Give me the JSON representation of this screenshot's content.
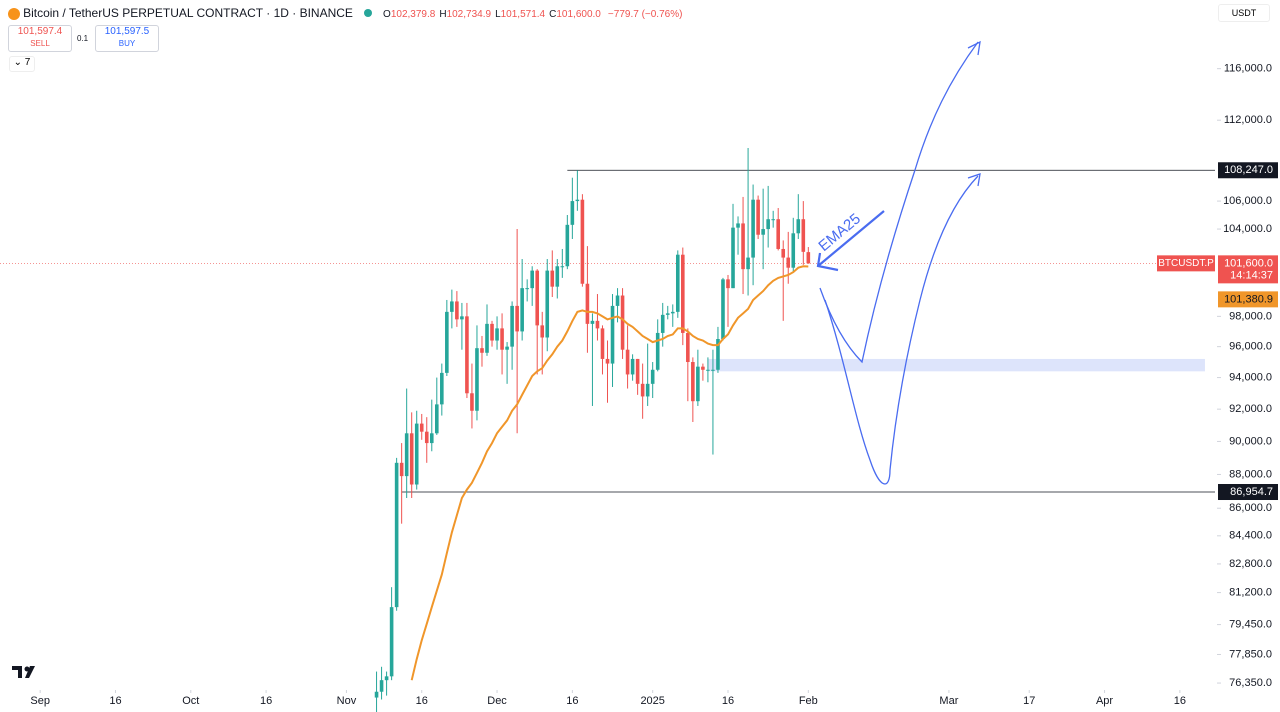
{
  "header": {
    "title": "Bitcoin / TetherUS PERPETUAL CONTRACT · 1D · BINANCE",
    "ohlc": [
      {
        "k": "O",
        "v": "102,379.8"
      },
      {
        "k": "H",
        "v": "102,734.9"
      },
      {
        "k": "L",
        "v": "101,571.4"
      },
      {
        "k": "C",
        "v": "101,600.0"
      }
    ],
    "change": "−779.7 (−0.76%)",
    "sell_price": "101,597.4",
    "sell": "SELL",
    "spread": "0.1",
    "buy_price": "101,597.5",
    "buy": "BUY",
    "indicators": "7",
    "currency": "USDT"
  },
  "chart_data": {
    "type": "candlestick",
    "log_scale": true,
    "up_color": "#26a69a",
    "down_color": "#ef5350",
    "ema_color": "#f0962a",
    "x": [
      "2024-11-07",
      "2024-11-08",
      "2024-11-09",
      "2024-11-10",
      "2024-11-11",
      "2024-11-12",
      "2024-11-13",
      "2024-11-14",
      "2024-11-15",
      "2024-11-16",
      "2024-11-17",
      "2024-11-18",
      "2024-11-19",
      "2024-11-20",
      "2024-11-21",
      "2024-11-22",
      "2024-11-23",
      "2024-11-24",
      "2024-11-25",
      "2024-11-26",
      "2024-11-27",
      "2024-11-28",
      "2024-11-29",
      "2024-11-30",
      "2024-12-01",
      "2024-12-02",
      "2024-12-03",
      "2024-12-04",
      "2024-12-05",
      "2024-12-06",
      "2024-12-07",
      "2024-12-08",
      "2024-12-09",
      "2024-12-10",
      "2024-12-11",
      "2024-12-12",
      "2024-12-13",
      "2024-12-14",
      "2024-12-15",
      "2024-12-16",
      "2024-12-17",
      "2024-12-18",
      "2024-12-19",
      "2024-12-20",
      "2024-12-21",
      "2024-12-22",
      "2024-12-23",
      "2024-12-24",
      "2024-12-25",
      "2024-12-26",
      "2024-12-27",
      "2024-12-28",
      "2024-12-29",
      "2024-12-30",
      "2024-12-31",
      "2025-01-01",
      "2025-01-02",
      "2025-01-03",
      "2025-01-04",
      "2025-01-05",
      "2025-01-06",
      "2025-01-07",
      "2025-01-08",
      "2025-01-09",
      "2025-01-10",
      "2025-01-11",
      "2025-01-12",
      "2025-01-13",
      "2025-01-14",
      "2025-01-15",
      "2025-01-16",
      "2025-01-17",
      "2025-01-18",
      "2025-01-19",
      "2025-01-20",
      "2025-01-21",
      "2025-01-22",
      "2025-01-23",
      "2025-01-24",
      "2025-01-25",
      "2025-01-26",
      "2025-01-27",
      "2025-01-28",
      "2025-01-29",
      "2025-01-30",
      "2025-01-31",
      "2025-02-01"
    ],
    "open": [
      75600,
      75900,
      76500,
      76700,
      80400,
      88700,
      87900,
      90500,
      87400,
      91100,
      90600,
      89900,
      90500,
      92300,
      94300,
      98300,
      99000,
      97800,
      98000,
      93000,
      91900,
      95900,
      95600,
      97500,
      96400,
      97200,
      95800,
      96000,
      98700,
      97000,
      99900,
      99900,
      101100,
      97400,
      96600,
      101100,
      100000,
      101400,
      101400,
      104300,
      106000,
      106100,
      100200,
      97500,
      97700,
      97200,
      95200,
      94900,
      98700,
      99400,
      95800,
      94200,
      95200,
      93600,
      92800,
      93600,
      94500,
      96900,
      98100,
      98200,
      98300,
      102200,
      96900,
      95000,
      92500,
      94700,
      94500,
      94500,
      94500,
      96500,
      100500,
      99900,
      104100,
      104400,
      101200,
      102000,
      106100,
      103600,
      104000,
      104700,
      104700,
      102600,
      102000,
      101300,
      103700,
      104700,
      102379.8
    ],
    "high": [
      76950,
      77200,
      76950,
      81500,
      89000,
      89900,
      93300,
      91800,
      91900,
      91700,
      91500,
      92600,
      94000,
      94900,
      99100,
      99800,
      99700,
      98900,
      98900,
      94900,
      97400,
      96700,
      98800,
      97700,
      98000,
      98200,
      96300,
      99000,
      104000,
      101900,
      100500,
      101400,
      101200,
      98300,
      101900,
      102500,
      101900,
      102600,
      105000,
      107700,
      108250,
      106500,
      102800,
      98200,
      99500,
      97400,
      96400,
      99500,
      99900,
      99900,
      97400,
      95500,
      95200,
      94900,
      96200,
      95000,
      97800,
      98900,
      98700,
      98800,
      102500,
      102700,
      97200,
      95300,
      95800,
      94900,
      95300,
      95800,
      97300,
      100600,
      100800,
      105800,
      104900,
      106300,
      109900,
      107200,
      106400,
      106900,
      107100,
      105300,
      105500,
      103200,
      103800,
      104800,
      106500,
      106000,
      102734.9
    ],
    "low": [
      74500,
      75500,
      75700,
      76500,
      80200,
      85100,
      86600,
      86600,
      87100,
      90100,
      88700,
      89400,
      90400,
      91600,
      94100,
      97200,
      97300,
      95800,
      92700,
      90800,
      91300,
      94700,
      95400,
      96000,
      95800,
      94200,
      93600,
      94500,
      90500,
      96400,
      99000,
      98700,
      94200,
      94200,
      95700,
      99300,
      99200,
      100600,
      101200,
      103300,
      105300,
      100000,
      95600,
      92200,
      96400,
      94200,
      92400,
      93400,
      97600,
      95200,
      93300,
      93800,
      92900,
      91400,
      92200,
      92700,
      94400,
      96000,
      97800,
      97300,
      97900,
      96100,
      92500,
      91200,
      92200,
      93800,
      93700,
      89200,
      94300,
      96400,
      97300,
      99900,
      102200,
      99500,
      99400,
      100100,
      103300,
      101200,
      102700,
      104100,
      102500,
      97700,
      100200,
      101000,
      103300,
      101500,
      101571.4
    ],
    "close": [
      75900,
      76500,
      76700,
      80400,
      88700,
      87900,
      90500,
      87400,
      91100,
      90600,
      89900,
      90500,
      92300,
      94300,
      98300,
      99000,
      97800,
      98000,
      93000,
      91900,
      95900,
      95600,
      97500,
      96400,
      97200,
      95800,
      96000,
      98700,
      97000,
      99900,
      99900,
      101100,
      97400,
      96600,
      101100,
      100000,
      101400,
      101400,
      104300,
      106000,
      106100,
      100200,
      97500,
      97700,
      97200,
      95200,
      94900,
      98700,
      99400,
      95800,
      94200,
      95200,
      93600,
      92800,
      93600,
      94500,
      96900,
      98100,
      98200,
      98300,
      102200,
      96900,
      95000,
      92500,
      94700,
      94500,
      94500,
      94500,
      96500,
      100500,
      99900,
      104100,
      104400,
      101200,
      102000,
      106100,
      103600,
      104000,
      104700,
      104700,
      102600,
      102000,
      101300,
      103700,
      104700,
      102400,
      101600
    ],
    "ema25": [
      null,
      null,
      null,
      null,
      null,
      null,
      null,
      76500,
      77600,
      78600,
      79500,
      80400,
      81300,
      82200,
      83400,
      84600,
      85600,
      86600,
      87100,
      87500,
      88100,
      88700,
      89400,
      89900,
      90500,
      90900,
      91300,
      91900,
      92300,
      92900,
      93500,
      94100,
      94400,
      94600,
      95100,
      95500,
      96000,
      96400,
      97000,
      97700,
      98300,
      98400,
      98300,
      98300,
      98200,
      98000,
      97800,
      97900,
      98000,
      97800,
      97500,
      97300,
      97000,
      96700,
      96500,
      96300,
      96400,
      96500,
      96700,
      96800,
      97200,
      97200,
      97000,
      96700,
      96500,
      96400,
      96200,
      96100,
      96100,
      96500,
      96800,
      97400,
      97900,
      98200,
      98500,
      99100,
      99400,
      99700,
      100100,
      100400,
      100600,
      100700,
      100800,
      101000,
      101300,
      101400,
      101380.9
    ],
    "xlim": [
      "2024-08-24",
      "2025-04-23"
    ],
    "xticks": [
      {
        "value": "2024-09-01",
        "label": "Sep"
      },
      {
        "value": "2024-09-16",
        "label": "16"
      },
      {
        "value": "2024-10-01",
        "label": "Oct"
      },
      {
        "value": "2024-10-16",
        "label": "16"
      },
      {
        "value": "2024-11-01",
        "label": "Nov"
      },
      {
        "value": "2024-11-16",
        "label": "16"
      },
      {
        "value": "2024-12-01",
        "label": "Dec"
      },
      {
        "value": "2024-12-16",
        "label": "16"
      },
      {
        "value": "2025-01-01",
        "label": "2025"
      },
      {
        "value": "2025-01-16",
        "label": "16"
      },
      {
        "value": "2025-02-01",
        "label": "Feb"
      },
      {
        "value": "2025-03-01",
        "label": "Mar"
      },
      {
        "value": "2025-03-17",
        "label": "17"
      },
      {
        "value": "2025-04-01",
        "label": "Apr"
      },
      {
        "value": "2025-04-16",
        "label": "16"
      }
    ],
    "ylim": [
      75990,
      121550
    ],
    "yticks": [
      {
        "value": 76350,
        "label": "76,350.0"
      },
      {
        "value": 77850,
        "label": "77,850.0"
      },
      {
        "value": 79450,
        "label": "79,450.0"
      },
      {
        "value": 81200,
        "label": "81,200.0"
      },
      {
        "value": 82800,
        "label": "82,800.0"
      },
      {
        "value": 84400,
        "label": "84,400.0"
      },
      {
        "value": 86000,
        "label": "86,000.0"
      },
      {
        "value": 88000,
        "label": "88,000.0"
      },
      {
        "value": 90000,
        "label": "90,000.0"
      },
      {
        "value": 92000,
        "label": "92,000.0"
      },
      {
        "value": 94000,
        "label": "94,000.0"
      },
      {
        "value": 96000,
        "label": "96,000.0"
      },
      {
        "value": 98000,
        "label": "98,000.0"
      },
      {
        "value": 104000,
        "label": "104,000.0"
      },
      {
        "value": 106000,
        "label": "106,000.0"
      },
      {
        "value": 112000,
        "label": "112,000.0"
      },
      {
        "value": 116000,
        "label": "116,000.0"
      }
    ],
    "levels": [
      {
        "value": 108247,
        "label": "108,247.0",
        "from": "2024-12-15"
      },
      {
        "value": 86954.7,
        "label": "86,954.7",
        "from": "2024-11-12"
      }
    ],
    "zone": {
      "from": "2025-01-12",
      "to": "2025-04-21",
      "low": 94400,
      "high": 95200
    },
    "last_price": {
      "value": 101600,
      "label": "101,600.0"
    },
    "symbol": "BTCUSDT.P",
    "countdown": "14:14:37",
    "ema_label": {
      "value": 101380.9,
      "label": "101,380.9"
    },
    "annotation": "EMA25"
  }
}
